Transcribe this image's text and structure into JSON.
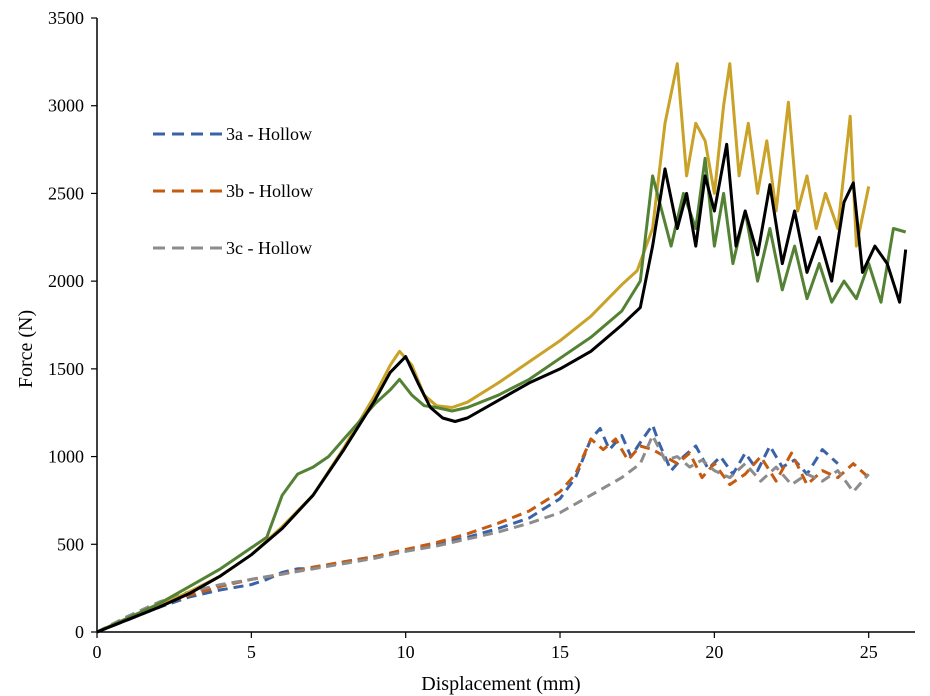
{
  "chart_data": {
    "type": "line",
    "title": "",
    "xlabel": "Displacement (mm)",
    "ylabel": "Force (N)",
    "xlim": [
      0,
      26.5
    ],
    "ylim": [
      0,
      3500
    ],
    "xticks": [
      0,
      5,
      10,
      15,
      20,
      25
    ],
    "yticks": [
      0,
      500,
      1000,
      1500,
      2000,
      2500,
      3000,
      3500
    ],
    "grid": false,
    "legend_position": "left",
    "series": [
      {
        "name": "3a - Hollow",
        "style": "dashed",
        "color": "#3a62a8",
        "x": [
          0,
          1,
          2,
          3,
          4,
          5,
          5.5,
          6,
          6.5,
          7,
          8,
          9,
          10,
          11,
          12,
          13,
          14,
          15,
          15.5,
          16,
          16.3,
          16.6,
          17.0,
          17.3,
          17.6,
          18.0,
          18.2,
          18.6,
          19.0,
          19.4,
          19.8,
          20.2,
          20.6,
          21.0,
          21.4,
          21.8,
          22.2,
          22.6,
          23.0,
          23.5,
          24.0
        ],
        "y": [
          0,
          70,
          140,
          200,
          240,
          270,
          300,
          340,
          360,
          360,
          400,
          430,
          460,
          500,
          540,
          590,
          650,
          760,
          880,
          1100,
          1160,
          1040,
          1120,
          1000,
          1080,
          1180,
          1080,
          920,
          1000,
          1060,
          930,
          1000,
          900,
          1020,
          920,
          1060,
          940,
          980,
          900,
          1040,
          960
        ]
      },
      {
        "name": "3b - Hollow",
        "style": "dashed",
        "color": "#c55a11",
        "x": [
          0,
          1,
          2,
          3,
          4,
          5,
          6,
          7,
          8,
          9,
          10,
          11,
          12,
          13,
          14,
          15,
          15.5,
          16,
          16.4,
          16.8,
          17.2,
          17.6,
          18.0,
          18.4,
          18.8,
          19.2,
          19.6,
          20.0,
          20.5,
          21.0,
          21.5,
          22.0,
          22.5,
          23.0,
          23.5,
          24.0,
          24.5,
          25.0
        ],
        "y": [
          0,
          80,
          150,
          210,
          260,
          300,
          330,
          370,
          400,
          430,
          470,
          510,
          560,
          620,
          690,
          800,
          900,
          1100,
          1040,
          1100,
          980,
          1060,
          1040,
          1000,
          960,
          1020,
          880,
          960,
          840,
          900,
          1000,
          860,
          1020,
          840,
          920,
          880,
          960,
          880
        ]
      },
      {
        "name": "3c - Hollow",
        "style": "dashed",
        "color": "#8c8c8c",
        "x": [
          0,
          1,
          2,
          3,
          4,
          5,
          6,
          7,
          8,
          9,
          10,
          11,
          12,
          13,
          14,
          15,
          16,
          17,
          17.6,
          18.0,
          18.4,
          18.8,
          19.2,
          19.6,
          20.0,
          20.5,
          21.0,
          21.5,
          22.0,
          22.5,
          23.0,
          23.5,
          24.0,
          24.5,
          25.0
        ],
        "y": [
          0,
          90,
          170,
          230,
          270,
          300,
          330,
          360,
          390,
          420,
          460,
          490,
          530,
          570,
          620,
          680,
          780,
          880,
          960,
          1120,
          980,
          1000,
          940,
          980,
          920,
          880,
          960,
          860,
          940,
          840,
          900,
          860,
          920,
          800,
          900
        ]
      },
      {
        "name": "",
        "style": "solid",
        "color": "#c9a227",
        "x": [
          0,
          1,
          2,
          3,
          4,
          5,
          6,
          7,
          8,
          9,
          9.5,
          9.8,
          10.2,
          10.6,
          11,
          11.5,
          12,
          13,
          14,
          15,
          16,
          17,
          17.5,
          18.0,
          18.4,
          18.8,
          19.1,
          19.4,
          19.7,
          20.0,
          20.3,
          20.5,
          20.8,
          21.1,
          21.4,
          21.7,
          22.0,
          22.4,
          22.7,
          23.0,
          23.3,
          23.6,
          24.0,
          24.4,
          24.6,
          25.0
        ],
        "y": [
          0,
          80,
          150,
          230,
          320,
          440,
          600,
          780,
          1050,
          1350,
          1520,
          1600,
          1520,
          1350,
          1290,
          1280,
          1310,
          1420,
          1540,
          1660,
          1800,
          1980,
          2060,
          2300,
          2900,
          3240,
          2600,
          2900,
          2800,
          2500,
          3000,
          3240,
          2600,
          2900,
          2500,
          2800,
          2400,
          3020,
          2400,
          2600,
          2300,
          2500,
          2300,
          2940,
          2200,
          2540
        ]
      },
      {
        "name": "",
        "style": "solid",
        "color": "#548235",
        "x": [
          0,
          1,
          2,
          3,
          4,
          5,
          5.5,
          6,
          6.5,
          7,
          7.5,
          8,
          8.5,
          9,
          9.5,
          9.8,
          10.2,
          10.6,
          11,
          11.5,
          12,
          13,
          14,
          15,
          16,
          17,
          17.6,
          18.0,
          18.3,
          18.6,
          19.0,
          19.4,
          19.7,
          20.0,
          20.3,
          20.6,
          21.0,
          21.4,
          21.8,
          22.2,
          22.6,
          23.0,
          23.4,
          23.8,
          24.2,
          24.6,
          25.0,
          25.4,
          25.8,
          26.2
        ],
        "y": [
          0,
          80,
          160,
          260,
          360,
          480,
          540,
          780,
          900,
          940,
          1000,
          1100,
          1200,
          1300,
          1380,
          1440,
          1350,
          1290,
          1280,
          1260,
          1280,
          1350,
          1440,
          1560,
          1680,
          1830,
          2000,
          2600,
          2400,
          2200,
          2500,
          2300,
          2700,
          2200,
          2500,
          2100,
          2400,
          2000,
          2300,
          1950,
          2200,
          1900,
          2100,
          1880,
          2000,
          1900,
          2100,
          1880,
          2300,
          2280
        ]
      },
      {
        "name": "",
        "style": "solid",
        "color": "#000000",
        "x": [
          0,
          1,
          2,
          3,
          4,
          5,
          6,
          7,
          8,
          9,
          9.5,
          10.0,
          10.4,
          10.8,
          11.2,
          11.6,
          12,
          13,
          14,
          15,
          16,
          17,
          17.6,
          18.0,
          18.4,
          18.8,
          19.1,
          19.4,
          19.7,
          20.0,
          20.4,
          20.7,
          21.0,
          21.4,
          21.8,
          22.2,
          22.6,
          23.0,
          23.4,
          23.8,
          24.2,
          24.5,
          24.8,
          25.2,
          25.6,
          26.0,
          26.2
        ],
        "y": [
          0,
          70,
          140,
          220,
          320,
          440,
          590,
          780,
          1040,
          1320,
          1480,
          1570,
          1420,
          1280,
          1220,
          1200,
          1220,
          1320,
          1420,
          1500,
          1600,
          1750,
          1850,
          2200,
          2640,
          2300,
          2500,
          2200,
          2600,
          2400,
          2780,
          2200,
          2400,
          2150,
          2550,
          2100,
          2400,
          2050,
          2250,
          2000,
          2450,
          2560,
          2050,
          2200,
          2100,
          1880,
          2180
        ]
      }
    ]
  }
}
